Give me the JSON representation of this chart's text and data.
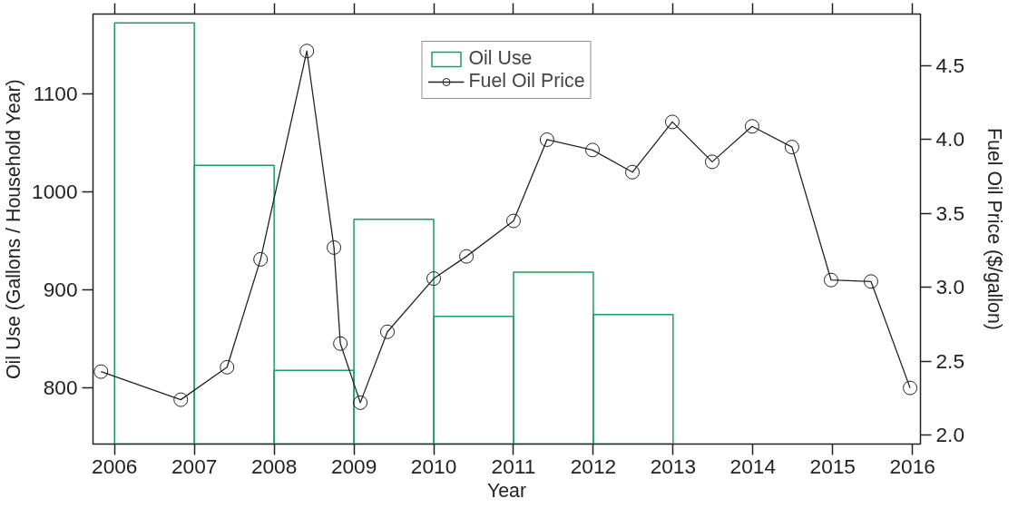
{
  "chart_data": {
    "type": "histogram",
    "xlabel": "Year",
    "ylabel": "Oil Use (Gallons / Household Year)",
    "y2label": "Fuel Oil Price ($/gallon)",
    "xlim": [
      2005.73,
      2016.1
    ],
    "xticks": [
      2006,
      2007,
      2008,
      2009,
      2010,
      2011,
      2012,
      2013,
      2014,
      2015,
      2016
    ],
    "ylim": [
      743,
      1181
    ],
    "yticks": [
      800,
      900,
      1000,
      1100
    ],
    "y2lim": [
      1.94,
      4.85
    ],
    "y2ticks": [
      {
        "value": 2.0,
        "label": "2.0"
      },
      2.5,
      {
        "value": 3.0,
        "label": "3.0"
      },
      3.5,
      {
        "value": 4.0,
        "label": "4.0"
      },
      4.5
    ],
    "grid": false,
    "legend": "top",
    "series": [
      {
        "name": "Oil Use",
        "color": "#1b9e60",
        "bins": [
          2006,
          2007,
          2008,
          2009,
          2010,
          2011,
          2012,
          2013
        ],
        "values": [
          1172,
          1027,
          818,
          972,
          873,
          918,
          875
        ]
      },
      {
        "name": "Fuel Oil Price",
        "type": "line",
        "axis": "y2",
        "color": "#222222",
        "marker": "circle",
        "line_style": "solid",
        "x": [
          2005.83,
          2006.83,
          2007.41,
          2007.83,
          2008.41,
          2008.75,
          2008.83,
          2009.08,
          2009.42,
          2010.0,
          2010.41,
          2011.0,
          2011.42,
          2011.99,
          2012.49,
          2012.99,
          2013.49,
          2013.99,
          2014.49,
          2014.98,
          2015.48,
          2015.97
        ],
        "values": [
          2.43,
          2.24,
          2.46,
          3.19,
          4.6,
          3.27,
          2.62,
          2.22,
          2.7,
          3.06,
          3.21,
          3.45,
          4.0,
          3.93,
          3.78,
          4.12,
          3.85,
          4.09,
          3.95,
          3.05,
          3.04,
          2.32
        ]
      }
    ]
  }
}
